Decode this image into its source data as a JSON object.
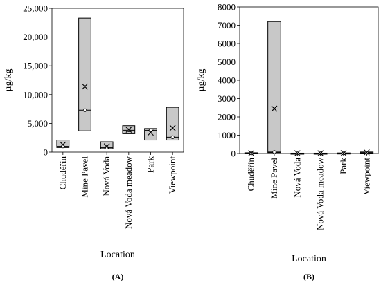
{
  "chart_data": [
    {
      "type": "box",
      "panel_label": "(A)",
      "xlabel": "Location",
      "ylabel": "µg/kg",
      "ylim": [
        0,
        25000
      ],
      "yticks": [
        0,
        5000,
        10000,
        15000,
        20000,
        25000
      ],
      "ytick_labels": [
        "0",
        "5,000",
        "10,000",
        "15,000",
        "20,000",
        "25,000"
      ],
      "grid": false,
      "categories": [
        "Chuděřín",
        "Mine Pavel",
        "Nová Voda",
        "Nová Voda meadow",
        "Park",
        "Viewpoint"
      ],
      "boxes": [
        {
          "q1": 800,
          "q3": 2100,
          "median": 1000,
          "mean": 1300
        },
        {
          "q1": 3700,
          "q3": 23300,
          "median": 7300,
          "mean": 11400
        },
        {
          "q1": 600,
          "q3": 1800,
          "median": 800,
          "mean": 1000
        },
        {
          "q1": 3200,
          "q3": 4600,
          "median": 3800,
          "mean": 3900
        },
        {
          "q1": 2100,
          "q3": 4100,
          "median": 3800,
          "mean": 3400
        },
        {
          "q1": 2100,
          "q3": 7800,
          "median": 2600,
          "mean": 4200
        }
      ],
      "box_color": "#c8c8c8"
    },
    {
      "type": "box",
      "panel_label": "(B)",
      "xlabel": "Location",
      "ylabel": "µg/kg",
      "ylim": [
        0,
        8000
      ],
      "yticks": [
        0,
        1000,
        2000,
        3000,
        4000,
        5000,
        6000,
        7000,
        8000
      ],
      "ytick_labels": [
        "0",
        "1000",
        "2000",
        "3000",
        "4000",
        "5000",
        "6000",
        "7000",
        "8000"
      ],
      "grid": false,
      "categories": [
        "Chuděřín",
        "Mine Pavel",
        "Nová Voda",
        "Nová Voda meadow",
        "Park",
        "Viewpoint"
      ],
      "boxes": [
        {
          "q1": 5,
          "q3": 40,
          "median": 15,
          "mean": 20
        },
        {
          "q1": 50,
          "q3": 7200,
          "median": 80,
          "mean": 2450
        },
        {
          "q1": 5,
          "q3": 20,
          "median": 10,
          "mean": 15
        },
        {
          "q1": 5,
          "q3": 20,
          "median": 10,
          "mean": 12
        },
        {
          "q1": 5,
          "q3": 30,
          "median": 10,
          "mean": 20
        },
        {
          "q1": 20,
          "q3": 80,
          "median": 40,
          "mean": 60
        }
      ],
      "box_color": "#c8c8c8"
    }
  ]
}
